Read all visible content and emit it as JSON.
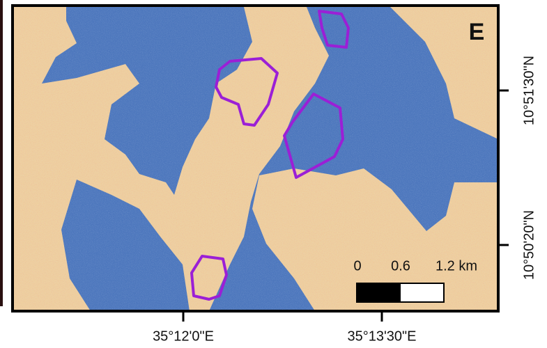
{
  "panel_label": "E",
  "latitude_labels": [
    "10°51'30\"N",
    "10°50'20\"N"
  ],
  "longitude_labels": [
    "35°12'0\"E",
    "35°13'30\"E"
  ],
  "scale_bar": {
    "labels": [
      "0",
      "0.6",
      "1.2 km"
    ]
  }
}
